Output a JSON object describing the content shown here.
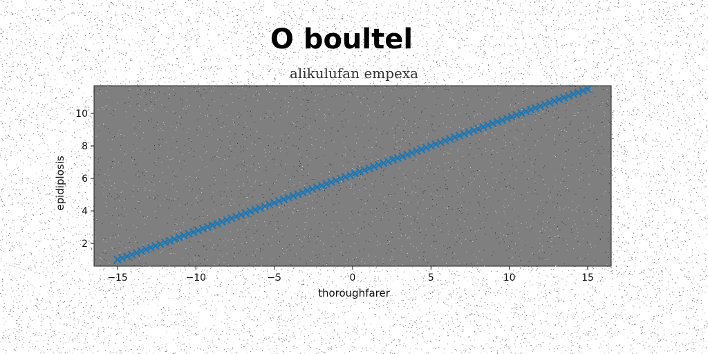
{
  "chart_data": {
    "type": "scatter",
    "title": "O boultel",
    "subtitle": "alikulufan empexa",
    "xlabel": "thoroughfarer",
    "ylabel": "epidiplosis",
    "xlim": [
      -16.5,
      16.5
    ],
    "ylim": [
      0.6,
      11.7
    ],
    "xticks": [
      -15,
      -10,
      -5,
      0,
      5,
      10,
      15
    ],
    "xtick_labels": [
      "−15",
      "−10",
      "−5",
      "0",
      "5",
      "10",
      "15"
    ],
    "yticks": [
      2,
      4,
      6,
      8,
      10
    ],
    "ytick_labels": [
      "2",
      "4",
      "6",
      "8",
      "10"
    ],
    "grid": false,
    "legend": "none",
    "series": [
      {
        "marker": "x",
        "line": {
          "x_start": -15,
          "x_end": 15,
          "n_points": 100,
          "slope": 0.35,
          "intercept": 6.25
        },
        "x_min": -15,
        "x_max": 15,
        "y_at_x_min": 1.0,
        "y_at_x_max": 11.5
      }
    ]
  },
  "colors": {
    "plot_background": "#7f7f7f",
    "series": "#1f77b4",
    "page_background": "#ffffff"
  }
}
